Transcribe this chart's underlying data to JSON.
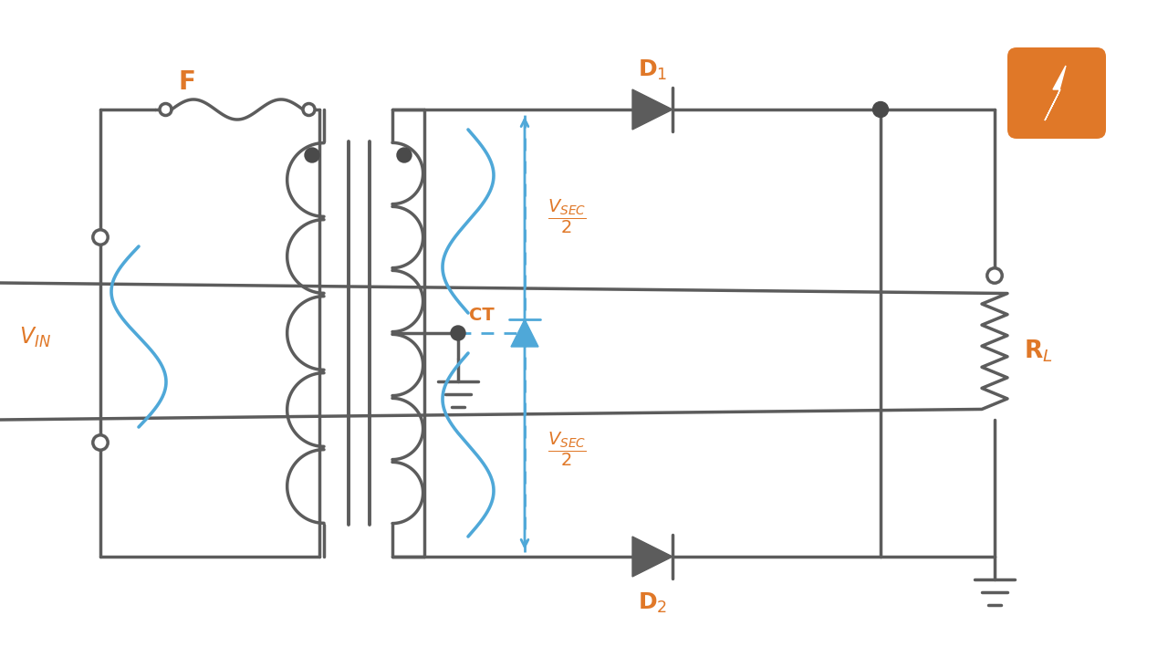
{
  "bg_color": "#ffffff",
  "line_color": "#5c5c5c",
  "blue_color": "#4fa8d8",
  "orange_color": "#e07828",
  "dot_color": "#4a4a4a",
  "lw": 2.5
}
